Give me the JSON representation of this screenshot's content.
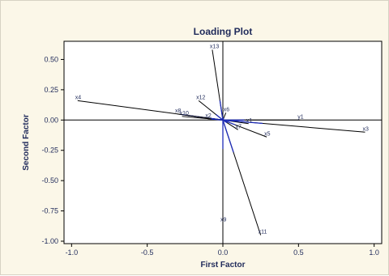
{
  "chart_data": {
    "type": "scatter",
    "title": "Loading Plot",
    "xlabel": "First Factor",
    "ylabel": "Second Factor",
    "xlim": [
      -1.05,
      1.05
    ],
    "ylim": [
      -1.02,
      0.65
    ],
    "x_ticks": [
      -1.0,
      -0.5,
      0.0,
      0.5,
      1.0
    ],
    "x_tick_labels": [
      "-1.0",
      "-0.5",
      "0.0",
      "0.5",
      "1.0"
    ],
    "y_ticks": [
      0.5,
      0.25,
      0.0,
      -0.25,
      -0.5,
      -0.75,
      -1.0
    ],
    "y_tick_labels": [
      "0.50",
      "0.25",
      "0.00",
      "-0.25",
      "-0.50",
      "-0.75",
      "-1.00"
    ],
    "reference_lines": {
      "x": 0,
      "y": 0
    },
    "grid": false,
    "points": [
      {
        "label": "x1",
        "x": 0.17,
        "y": -0.03
      },
      {
        "label": "x2",
        "x": -0.1,
        "y": 0.01
      },
      {
        "label": "x3",
        "x": 0.94,
        "y": -0.1
      },
      {
        "label": "x4",
        "x": -0.96,
        "y": 0.16
      },
      {
        "label": "x5",
        "x": 0.29,
        "y": -0.14
      },
      {
        "label": "x6",
        "x": 0.02,
        "y": 0.06
      },
      {
        "label": "x7",
        "x": 0.1,
        "y": -0.08
      },
      {
        "label": "x8",
        "x": -0.3,
        "y": 0.05
      },
      {
        "label": "x9",
        "x": 0.0,
        "y": -0.85
      },
      {
        "label": "x10",
        "x": -0.27,
        "y": 0.03
      },
      {
        "label": "x11",
        "x": 0.25,
        "y": -0.95
      },
      {
        "label": "x12",
        "x": -0.16,
        "y": 0.16
      },
      {
        "label": "x13",
        "x": -0.07,
        "y": 0.58
      },
      {
        "label": "y1",
        "x": 0.51,
        "y": 0.0
      }
    ],
    "colors": {
      "line": "#000000",
      "vector_near_origin": "#1f2db8",
      "frame_bg": "#fbf7e8",
      "plot_bg": "#ffffff",
      "text": "#1f2a5a"
    }
  }
}
